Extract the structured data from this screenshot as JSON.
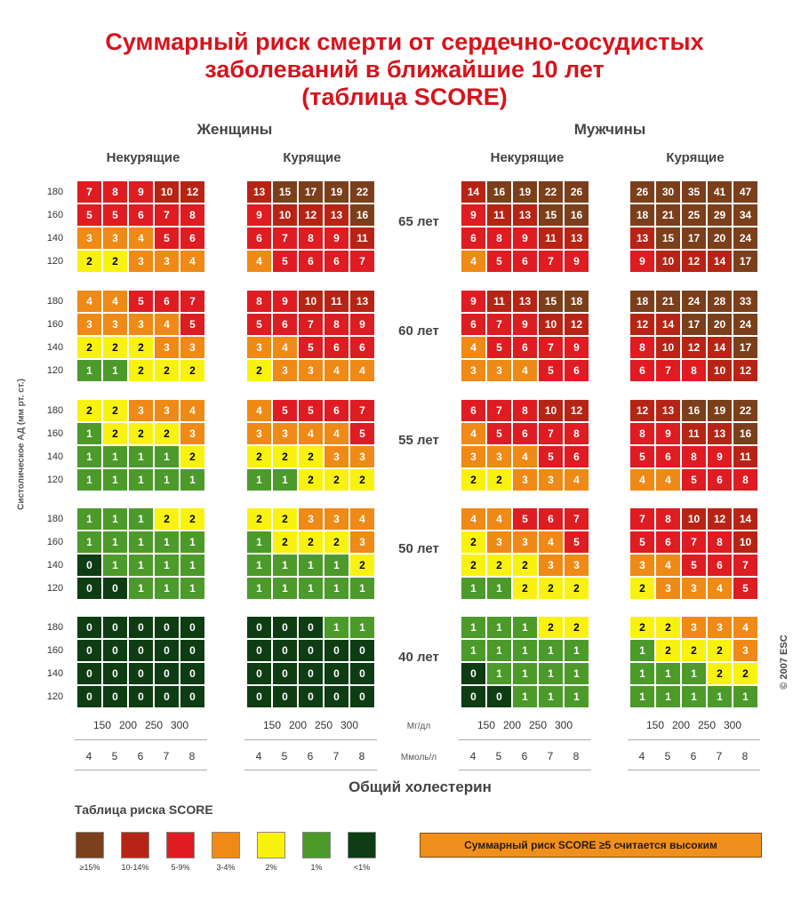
{
  "title_lines": [
    "Суммарный риск смерти от сердечно-сосудистых",
    "заболеваний в ближайшие 10 лет",
    "(таблица SCORE)"
  ],
  "sex_labels": {
    "women": "Женщины",
    "men": "Мужчины"
  },
  "smoking_labels": {
    "nonsmoker": "Некурящие",
    "smoker": "Курящие"
  },
  "y_axis_label": "Систолическое АД (мм рт. ст.)",
  "copyright": "© 2007 ESC",
  "x_axis_title": "Общий холестерин",
  "units": {
    "mg": "Мг/дл",
    "mmol": "Ммоль/л"
  },
  "legend_title": "Таблица риска SCORE",
  "high_risk_note": "Суммарный риск SCORE ≥5 считается высоким",
  "chart_data": {
    "type": "heatmap",
    "title": "Суммарный риск смерти от сердечно-сосудистых заболеваний в ближайшие 10 лет (таблица SCORE)",
    "ylabel": "Систолическое АД (мм рт. ст.)",
    "xlabel": "Общий холестерин",
    "systolic_bp": [
      180,
      160,
      140,
      120
    ],
    "cholesterol_mmol": [
      "4",
      "5",
      "6",
      "7",
      "8"
    ],
    "cholesterol_mg": [
      "150",
      "200",
      "250",
      "300"
    ],
    "ages": [
      "65 лет",
      "60 лет",
      "55 лет",
      "50 лет",
      "40 лет"
    ],
    "panel_order": [
      "women_nonsmoker",
      "women_smoker",
      "men_nonsmoker",
      "men_smoker"
    ],
    "legend": [
      {
        "label": "≥15%",
        "color": "#7b3f1c"
      },
      {
        "label": "10-14%",
        "color": "#b72415"
      },
      {
        "label": "5-9%",
        "color": "#de1c22"
      },
      {
        "label": "3-4%",
        "color": "#ee8a15"
      },
      {
        "label": "2%",
        "color": "#f9f20f"
      },
      {
        "label": "1%",
        "color": "#4c9a2a"
      },
      {
        "label": "<1%",
        "color": "#0e3c13"
      }
    ],
    "values": {
      "women_nonsmoker": [
        [
          [
            7,
            8,
            9,
            10,
            12
          ],
          [
            5,
            5,
            6,
            7,
            8
          ],
          [
            3,
            3,
            4,
            5,
            6
          ],
          [
            2,
            2,
            3,
            3,
            4
          ]
        ],
        [
          [
            4,
            4,
            5,
            6,
            7
          ],
          [
            3,
            3,
            3,
            4,
            5
          ],
          [
            2,
            2,
            2,
            3,
            3
          ],
          [
            1,
            1,
            2,
            2,
            2
          ]
        ],
        [
          [
            2,
            2,
            3,
            3,
            4
          ],
          [
            1,
            2,
            2,
            2,
            3
          ],
          [
            1,
            1,
            1,
            1,
            2
          ],
          [
            1,
            1,
            1,
            1,
            1
          ]
        ],
        [
          [
            1,
            1,
            1,
            2,
            2
          ],
          [
            1,
            1,
            1,
            1,
            1
          ],
          [
            0,
            1,
            1,
            1,
            1
          ],
          [
            0,
            0,
            1,
            1,
            1
          ]
        ],
        [
          [
            0,
            0,
            0,
            0,
            0
          ],
          [
            0,
            0,
            0,
            0,
            0
          ],
          [
            0,
            0,
            0,
            0,
            0
          ],
          [
            0,
            0,
            0,
            0,
            0
          ]
        ]
      ],
      "women_smoker": [
        [
          [
            13,
            15,
            17,
            19,
            22
          ],
          [
            9,
            10,
            12,
            13,
            16
          ],
          [
            6,
            7,
            8,
            9,
            11
          ],
          [
            4,
            5,
            6,
            6,
            7
          ]
        ],
        [
          [
            8,
            9,
            10,
            11,
            13
          ],
          [
            5,
            6,
            7,
            8,
            9
          ],
          [
            3,
            4,
            5,
            6,
            6
          ],
          [
            2,
            3,
            3,
            4,
            4
          ]
        ],
        [
          [
            4,
            5,
            5,
            6,
            7
          ],
          [
            3,
            3,
            4,
            4,
            5
          ],
          [
            2,
            2,
            2,
            3,
            3
          ],
          [
            1,
            1,
            2,
            2,
            2
          ]
        ],
        [
          [
            2,
            2,
            3,
            3,
            4
          ],
          [
            1,
            2,
            2,
            2,
            3
          ],
          [
            1,
            1,
            1,
            1,
            2
          ],
          [
            1,
            1,
            1,
            1,
            1
          ]
        ],
        [
          [
            0,
            0,
            0,
            1,
            1
          ],
          [
            0,
            0,
            0,
            0,
            0
          ],
          [
            0,
            0,
            0,
            0,
            0
          ],
          [
            0,
            0,
            0,
            0,
            0
          ]
        ]
      ],
      "men_nonsmoker": [
        [
          [
            14,
            16,
            19,
            22,
            26
          ],
          [
            9,
            11,
            13,
            15,
            16
          ],
          [
            6,
            8,
            9,
            11,
            13
          ],
          [
            4,
            5,
            6,
            7,
            9
          ]
        ],
        [
          [
            9,
            11,
            13,
            15,
            18
          ],
          [
            6,
            7,
            9,
            10,
            12
          ],
          [
            4,
            5,
            6,
            7,
            9
          ],
          [
            3,
            3,
            4,
            5,
            6
          ]
        ],
        [
          [
            6,
            7,
            8,
            10,
            12
          ],
          [
            4,
            5,
            6,
            7,
            8
          ],
          [
            3,
            3,
            4,
            5,
            6
          ],
          [
            2,
            2,
            3,
            3,
            4
          ]
        ],
        [
          [
            4,
            4,
            5,
            6,
            7
          ],
          [
            2,
            3,
            3,
            4,
            5
          ],
          [
            2,
            2,
            2,
            3,
            3
          ],
          [
            1,
            1,
            2,
            2,
            2
          ]
        ],
        [
          [
            1,
            1,
            1,
            2,
            2
          ],
          [
            1,
            1,
            1,
            1,
            1
          ],
          [
            0,
            1,
            1,
            1,
            1
          ],
          [
            0,
            0,
            1,
            1,
            1
          ]
        ]
      ],
      "men_smoker": [
        [
          [
            26,
            30,
            35,
            41,
            47
          ],
          [
            18,
            21,
            25,
            29,
            34
          ],
          [
            13,
            15,
            17,
            20,
            24
          ],
          [
            9,
            10,
            12,
            14,
            17
          ]
        ],
        [
          [
            18,
            21,
            24,
            28,
            33
          ],
          [
            12,
            14,
            17,
            20,
            24
          ],
          [
            8,
            10,
            12,
            14,
            17
          ],
          [
            6,
            7,
            8,
            10,
            12
          ]
        ],
        [
          [
            12,
            13,
            16,
            19,
            22
          ],
          [
            8,
            9,
            11,
            13,
            16
          ],
          [
            5,
            6,
            8,
            9,
            11
          ],
          [
            4,
            4,
            5,
            6,
            8
          ]
        ],
        [
          [
            7,
            8,
            10,
            12,
            14
          ],
          [
            5,
            6,
            7,
            8,
            10
          ],
          [
            3,
            4,
            5,
            6,
            7
          ],
          [
            2,
            3,
            3,
            4,
            5
          ]
        ],
        [
          [
            2,
            2,
            3,
            3,
            4
          ],
          [
            1,
            2,
            2,
            2,
            3
          ],
          [
            1,
            1,
            1,
            2,
            2
          ],
          [
            1,
            1,
            1,
            1,
            1
          ]
        ]
      ]
    }
  }
}
